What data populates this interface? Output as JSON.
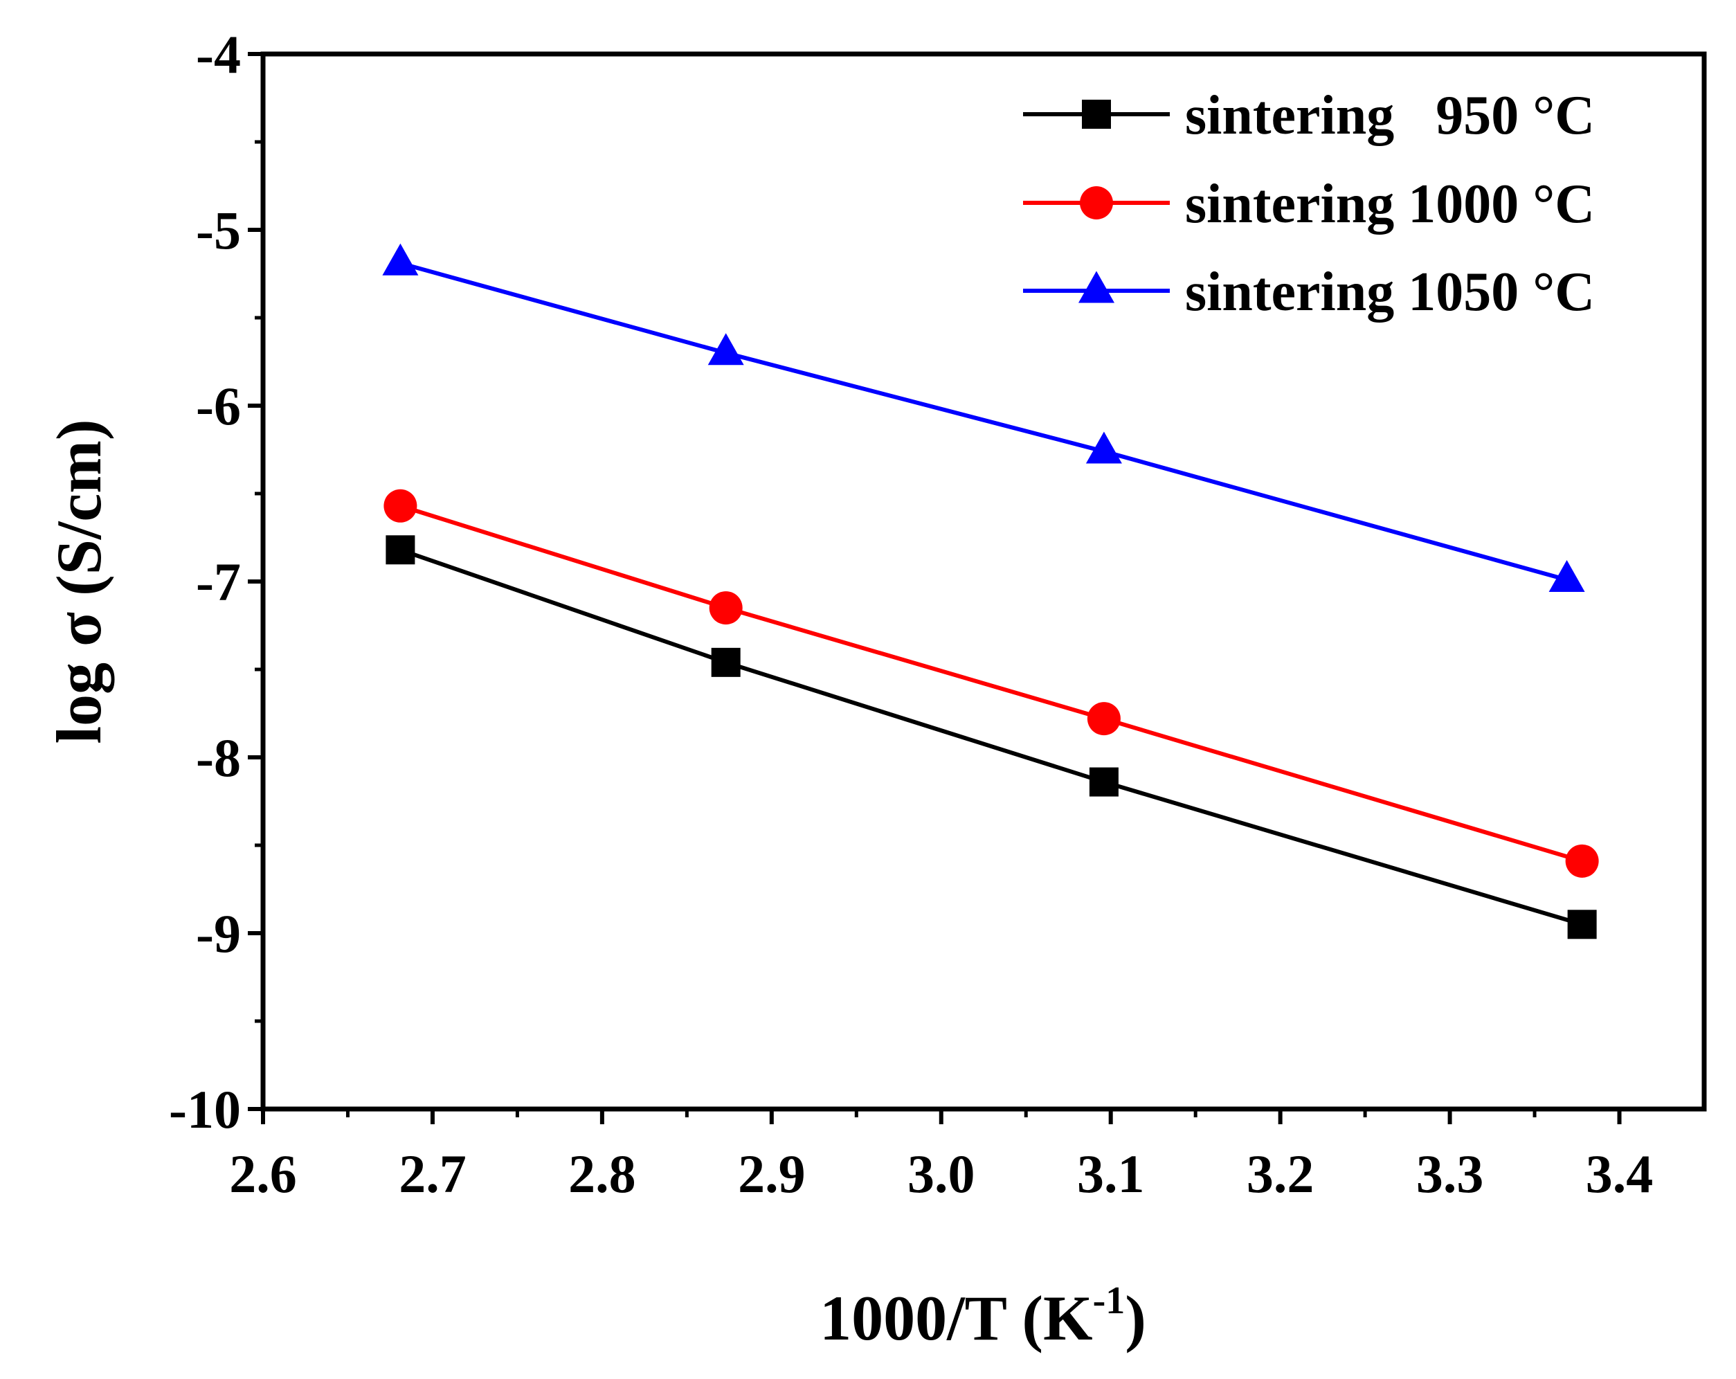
{
  "chart_data": {
    "type": "line",
    "xlabel_main": "1000/T (K",
    "xlabel_sup": "-1",
    "xlabel_close": ")",
    "ylabel": "log σ (S/cm)",
    "xlim": [
      2.6,
      3.45
    ],
    "ylim": [
      -10,
      -4
    ],
    "x_ticks": [
      2.6,
      2.7,
      2.8,
      2.9,
      3.0,
      3.1,
      3.2,
      3.3,
      3.4
    ],
    "x_tick_labels": [
      "2.6",
      "2.7",
      "2.8",
      "2.9",
      "3.0",
      "3.1",
      "3.2",
      "3.3",
      "3.4"
    ],
    "y_ticks": [
      -4,
      -5,
      -6,
      -7,
      -8,
      -9,
      -10
    ],
    "y_tick_labels": [
      "-4",
      "-5",
      "-6",
      "-7",
      "-8",
      "-9",
      "-10"
    ],
    "legend_position": "top-right",
    "series": [
      {
        "name": "sintering   950 °C",
        "color": "#000000",
        "marker": "square",
        "x": [
          2.681,
          2.873,
          3.096,
          3.378
        ],
        "y": [
          -6.82,
          -7.46,
          -8.14,
          -8.95
        ]
      },
      {
        "name": "sintering 1000 °C",
        "color": "#ff0000",
        "marker": "circle",
        "x": [
          2.681,
          2.873,
          3.096,
          3.378
        ],
        "y": [
          -6.57,
          -7.15,
          -7.78,
          -8.59
        ]
      },
      {
        "name": "sintering 1050 °C",
        "color": "#0000ff",
        "marker": "triangle",
        "x": [
          2.681,
          2.873,
          3.096,
          3.369
        ],
        "y": [
          -5.19,
          -5.7,
          -6.26,
          -6.99
        ]
      }
    ]
  }
}
